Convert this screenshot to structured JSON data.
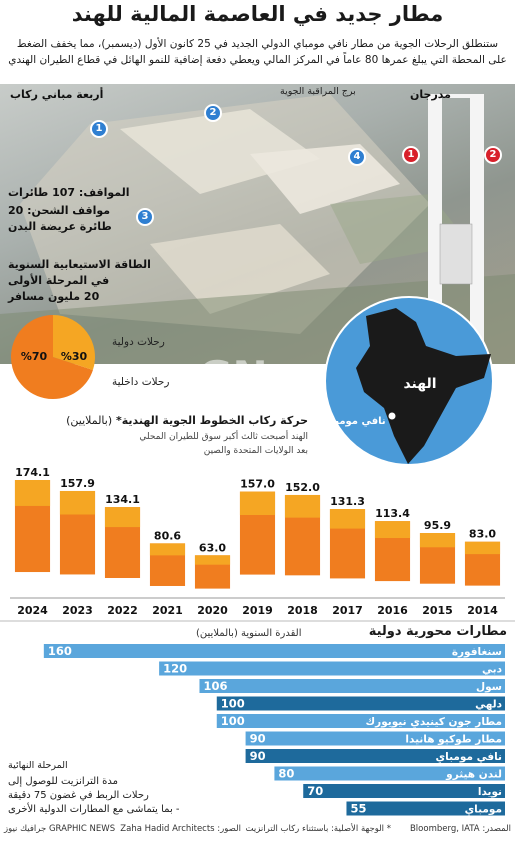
{
  "title": "مطار جديد في العاصمة المالية للهند",
  "intro": "ستنطلق الرحلات الجوية من مطار نافي مومباي الدولي الجديد في 25 كانون الأول (ديسمبر)، مما يخفف الضغط على المحطة التي يبلغ عمرها 80 عاماً في المركز المالي ويعطي دفعة إضافية للنمو الهائل في قطاع الطيران الهندي",
  "photo_labels": {
    "terminals": "أربعة مباني ركاب",
    "tower": "برج المراقبة الجوية",
    "runways": "مدرجان",
    "parking_value": "107",
    "parking_text": "المواقف: 107 طائرات",
    "cargo": "مواقف الشحن: 20",
    "widebody": "طائرة عريضة البدن",
    "pins": [
      "1",
      "2",
      "3",
      "4"
    ],
    "runway_pins": [
      "1",
      "2"
    ]
  },
  "capacity": {
    "title": "الطاقة الاستيعابية السنوية",
    "line2": "في المرحلة الأولى",
    "line3": "20 مليون مسافر",
    "intl_label": "رحلات دولية",
    "dom_label": "رحلات داخلية",
    "intl_pct": "%30",
    "dom_pct": "%70",
    "intl_value": 30,
    "dom_value": 70,
    "intl_color": "#f5a623",
    "dom_color": "#f07d1f"
  },
  "map": {
    "country": "الهند",
    "city": "نافي مومباي",
    "sea_color": "#4a9ad8"
  },
  "watermark": {
    "logo": "GN",
    "text": "GRAPHIC NEWS"
  },
  "chart_data": {
    "type": "bar",
    "title": "حركة ركاب الخطوط الجوية الهندية*",
    "title_unit": "(بالملايين)",
    "annotation": [
      "الهند أصبحت ثالث أكبر سوق للطيران المحلي",
      "بعد الولايات المتحدة والصين"
    ],
    "categories": [
      "2014",
      "2015",
      "2016",
      "2017",
      "2018",
      "2019",
      "2020",
      "2021",
      "2022",
      "2023",
      "2024"
    ],
    "values": [
      83.0,
      95.9,
      113.4,
      131.3,
      152.0,
      157.0,
      63.0,
      80.6,
      134.1,
      157.9,
      174.1
    ],
    "value_labels": [
      "83.0",
      "95.9",
      "113.4",
      "131.3",
      "152.0",
      "157.0",
      "63.0",
      "80.6",
      "134.1",
      "157.9",
      "174.1"
    ],
    "intl_share": 0.22,
    "colors": {
      "domestic": "#f07d1f",
      "international": "#f5a623"
    },
    "ylim": [
      0,
      180
    ]
  },
  "hubs": {
    "title": "مطارات محورية دولية",
    "subtitle": "القدرة السنوية (بالملايين)",
    "xlim": [
      0,
      170
    ],
    "items": [
      {
        "name": "سنغافورة",
        "value": 160,
        "label": "160",
        "dark": false
      },
      {
        "name": "دبي",
        "value": 120,
        "label": "120",
        "dark": false
      },
      {
        "name": "سول",
        "value": 106,
        "label": "106",
        "dark": false
      },
      {
        "name": "دلهي",
        "value": 100,
        "label": "100",
        "dark": true
      },
      {
        "name": "مطار جون كينيدي نيويورك",
        "value": 100,
        "label": "100",
        "dark": false
      },
      {
        "name": "مطار طوكيو هانيدا",
        "value": 90,
        "label": "90",
        "dark": false
      },
      {
        "name": "نافي مومباي",
        "value": 90,
        "label": "90",
        "dark": true
      },
      {
        "name": "لندن هيثرو",
        "value": 80,
        "label": "80",
        "dark": false
      },
      {
        "name": "نويدا",
        "value": 70,
        "label": "70",
        "dark": true
      },
      {
        "name": "مومباي",
        "value": 55,
        "label": "55",
        "dark": true
      }
    ],
    "colors": {
      "light": "#5aa6dc",
      "dark": "#1e6a9c"
    },
    "final_phase": "المرحلة النهائية",
    "notes": [
      "مدة الترانزيت للوصول إلى",
      "رحلات الربط في غضون 75 دقيقة",
      "- بما يتماشى مع المطارات الدولية الأخرى"
    ]
  },
  "footer": {
    "source": "المصدر: Bloomberg, IATA",
    "note": "* الوجهة الأصلية: باستثناء ركاب الترانزيت",
    "photo": "الصور: Zaha Hadid Architects",
    "brand": "GRAPHIC NEWS جرافيك نيوز"
  }
}
